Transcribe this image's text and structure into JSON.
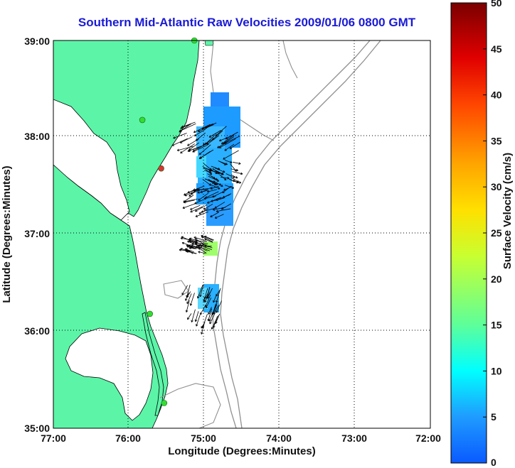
{
  "title": "Southern Mid-Atlantic Raw Velocities 2009/01/06 0800 GMT",
  "map": {
    "xlabel": "Longitude (Degrees:Minutes)",
    "ylabel": "Latitude (Degrees:Minutes)",
    "x_ticks": [
      "77:00",
      "76:00",
      "75:00",
      "74:00",
      "73:00",
      "72:00"
    ],
    "y_ticks": [
      "39:00",
      "38:00",
      "37:00",
      "36:00",
      "35:00"
    ],
    "lon_range": [
      -77,
      -72
    ],
    "lat_range": [
      35,
      39
    ],
    "grid": "dotted",
    "land_color": "#5cf5a8",
    "coast_color": "#000000",
    "bathymetry_color": "#909090"
  },
  "colorbar": {
    "label": "Surface Velocity (cm/s)",
    "ticks": [
      "50",
      "45",
      "40",
      "35",
      "30",
      "25",
      "20",
      "15",
      "10",
      "5",
      "0"
    ],
    "range": [
      0,
      50
    ],
    "position": "right"
  },
  "chart_data": {
    "type": "scatter",
    "description_units": "velocity vectors, lon/lat degrees, speed cm/s",
    "stations": [
      {
        "lon": -75.13,
        "lat": 39.0,
        "color": "#33dd33"
      },
      {
        "lon": -75.82,
        "lat": 38.18,
        "color": "#33dd33"
      },
      {
        "lon": -75.57,
        "lat": 37.68,
        "color": "#dd3333"
      },
      {
        "lon": -75.72,
        "lat": 36.18,
        "color": "#33dd33"
      },
      {
        "lon": -75.53,
        "lat": 35.26,
        "color": "#33dd33"
      }
    ],
    "patches": [
      {
        "lon": [
          -75.05,
          -74.55
        ],
        "lat": [
          38.0,
          38.45
        ],
        "speed": 6
      },
      {
        "lon": [
          -75.1,
          -74.6
        ],
        "lat": [
          37.6,
          38.0
        ],
        "speed": 8
      },
      {
        "lon": [
          -75.1,
          -74.6
        ],
        "lat": [
          37.1,
          37.6
        ],
        "speed": 7
      },
      {
        "lon": [
          -75.0,
          -74.85
        ],
        "lat": [
          36.85,
          36.95
        ],
        "speed": 20
      },
      {
        "lon": [
          -75.0,
          -74.8
        ],
        "lat": [
          36.25,
          36.5
        ],
        "speed": 9
      }
    ]
  }
}
